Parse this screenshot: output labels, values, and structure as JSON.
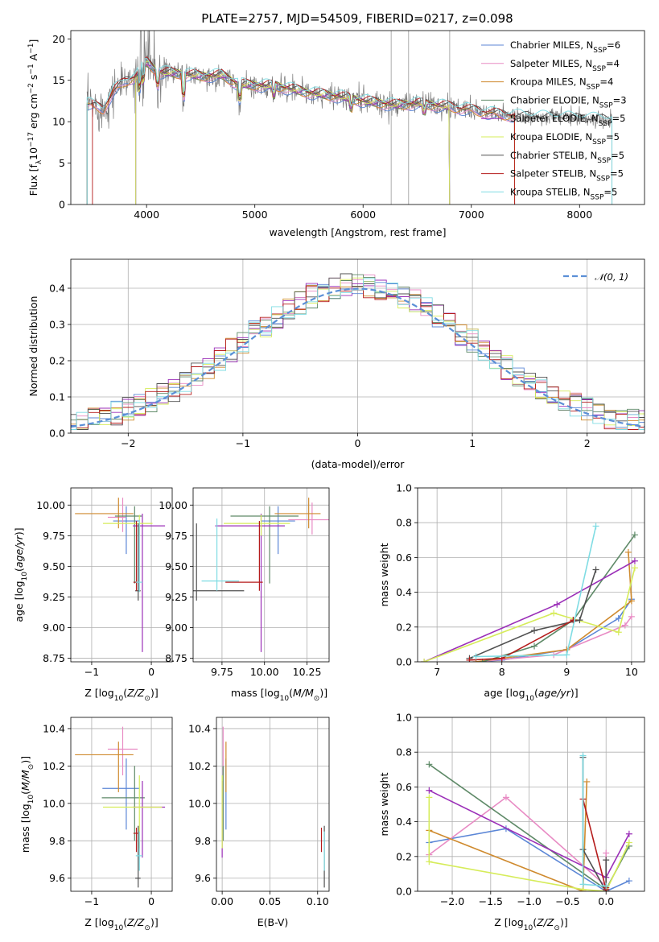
{
  "figure": {
    "title": "PLATE=2757, MJD=54509, FIBERID=0217, z=0.098"
  },
  "colors": {
    "Chabrier MILES": "#5b86d6",
    "Salpeter MILES": "#e88bc4",
    "Kroupa MILES": "#cf8a2e",
    "Chabrier ELODIE": "#5f8a68",
    "Salpeter ELODIE": "#9b2fb8",
    "Kroupa ELODIE": "#d6ec5a",
    "Chabrier STELIB": "#505050",
    "Salpeter STELIB": "#b51c1c",
    "Kroupa STELIB": "#7fdce3",
    "data": "#7a7a7a",
    "gauss": "#5b8fd6",
    "orange": "#e06d1e"
  },
  "chart_data": [
    {
      "id": "spectrum",
      "type": "line",
      "title": "PLATE=2757, MJD=54509, FIBERID=0217, z=0.098",
      "xlabel": "wavelength [Angstrom, rest frame]",
      "ylabel": "Flux [fλ10⁻¹⁷ erg cm⁻² s⁻¹ A⁻¹]",
      "xlim": [
        3300,
        8600
      ],
      "ylim": [
        0,
        21
      ],
      "xticks": [
        4000,
        5000,
        6000,
        7000,
        8000
      ],
      "yticks": [
        0,
        5,
        10,
        15,
        20
      ],
      "legend_position": "top-right",
      "legend": [
        {
          "name": "Chabrier MILES",
          "nssp": "6"
        },
        {
          "name": "Salpeter MILES",
          "nssp": "4"
        },
        {
          "name": "Kroupa MILES",
          "nssp": "4"
        },
        {
          "name": "Chabrier ELODIE",
          "nssp": "3"
        },
        {
          "name": "Salpeter ELODIE",
          "nssp": "5"
        },
        {
          "name": "Kroupa ELODIE",
          "nssp": "5"
        },
        {
          "name": "Chabrier STELIB",
          "nssp": "5"
        },
        {
          "name": "Salpeter STELIB",
          "nssp": "5"
        },
        {
          "name": "Kroupa STELIB",
          "nssp": "5"
        }
      ],
      "continuum": [
        [
          3450,
          12.2
        ],
        [
          3600,
          11.5
        ],
        [
          3700,
          13.8
        ],
        [
          3800,
          14.8
        ],
        [
          3900,
          15.5
        ],
        [
          4000,
          17.2
        ],
        [
          4100,
          16.0
        ],
        [
          4300,
          15.8
        ],
        [
          4500,
          15.5
        ],
        [
          4700,
          15.6
        ],
        [
          4850,
          14.5
        ],
        [
          5000,
          14.4
        ],
        [
          5200,
          14.3
        ],
        [
          5500,
          13.5
        ],
        [
          5800,
          13.0
        ],
        [
          6000,
          12.5
        ],
        [
          6300,
          12.0
        ],
        [
          6500,
          12.2
        ],
        [
          6800,
          11.8
        ],
        [
          7000,
          11.4
        ],
        [
          7300,
          10.8
        ],
        [
          7600,
          10.6
        ],
        [
          7800,
          10.5
        ],
        [
          8000,
          10.4
        ],
        [
          8200,
          10.3
        ],
        [
          8300,
          10.2
        ]
      ],
      "model_ranges": {
        "Chabrier MILES": [
          3450,
          7400
        ],
        "Salpeter MILES": [
          3450,
          7400
        ],
        "Kroupa MILES": [
          3450,
          7400
        ],
        "Chabrier ELODIE": [
          3900,
          6800
        ],
        "Salpeter ELODIE": [
          3900,
          6800
        ],
        "Kroupa ELODIE": [
          3900,
          6800
        ],
        "Chabrier STELIB": [
          3450,
          8300
        ],
        "Salpeter STELIB": [
          3500,
          7400
        ],
        "Kroupa STELIB": [
          3450,
          8300
        ]
      }
    },
    {
      "id": "residuals",
      "type": "line",
      "xlabel": "(data-model)/error",
      "ylabel": "Normed distribution",
      "xlim": [
        -2.5,
        2.5
      ],
      "ylim": [
        0,
        0.48
      ],
      "xticks": [
        -2,
        -1,
        0,
        1,
        2
      ],
      "yticks": [
        0.0,
        0.1,
        0.2,
        0.3,
        0.4
      ],
      "legend_position": "top-right",
      "reference": {
        "name": "𝒩(0, 1)",
        "mean": 0,
        "sigma": 1
      }
    },
    {
      "id": "age_vs_Z",
      "type": "scatter",
      "xlabel": "Z [log10(Z/Z⊙)]",
      "ylabel": "age  [log10(age/yr)]",
      "xlim": [
        -1.35,
        0.35
      ],
      "ylim": [
        8.72,
        10.14
      ],
      "xticks": [
        -1,
        0
      ],
      "yticks": [
        8.75,
        9.0,
        9.25,
        9.5,
        9.75,
        10.0
      ],
      "points": [
        {
          "name": "Chabrier MILES",
          "x": -0.42,
          "xerr": [
            0.22,
            0.22
          ],
          "y": 9.87,
          "yerr": [
            0.27,
            0.12
          ]
        },
        {
          "name": "Salpeter MILES",
          "x": -0.48,
          "xerr": [
            0.25,
            0.05
          ],
          "y": 9.9,
          "yerr": [
            0.12,
            0.16
          ]
        },
        {
          "name": "Kroupa MILES",
          "x": -0.55,
          "xerr": [
            0.73,
            0.25
          ],
          "y": 9.93,
          "yerr": [
            0.12,
            0.13
          ]
        },
        {
          "name": "Chabrier ELODIE",
          "x": -0.28,
          "xerr": [
            0.33,
            0.12
          ],
          "y": 9.91,
          "yerr": [
            0.55,
            0.08
          ]
        },
        {
          "name": "Salpeter ELODIE",
          "x": -0.15,
          "xerr": [
            0.16,
            0.38
          ],
          "y": 9.83,
          "yerr": [
            1.03,
            0.1
          ]
        },
        {
          "name": "Kroupa ELODIE",
          "x": -0.2,
          "xerr": [
            0.61,
            0.22
          ],
          "y": 9.85,
          "yerr": [
            0.1,
            0.07
          ]
        },
        {
          "name": "Chabrier STELIB",
          "x": -0.22,
          "xerr": [
            0.05,
            0.04
          ],
          "y": 9.3,
          "yerr": [
            0.08,
            0.55
          ]
        },
        {
          "name": "Salpeter STELIB",
          "x": -0.25,
          "xerr": [
            0.05,
            0.03
          ],
          "y": 9.37,
          "yerr": [
            0.07,
            0.5
          ]
        },
        {
          "name": "Kroupa STELIB",
          "x": -0.2,
          "xerr": [
            0.06,
            0.05
          ],
          "y": 9.37,
          "yerr": [
            0.08,
            0.51
          ]
        }
      ]
    },
    {
      "id": "age_vs_mass",
      "type": "scatter",
      "xlabel": "mass [log10(M/M⊙)]",
      "xlim": [
        9.58,
        10.38
      ],
      "ylim": [
        8.72,
        10.14
      ],
      "xticks": [
        9.75,
        10.0,
        10.25
      ],
      "xticklabels": [
        "9.75",
        "10.00",
        "10.25"
      ],
      "yticks": [
        8.75,
        9.0,
        9.25,
        9.5,
        9.75,
        10.0
      ],
      "points": [
        {
          "name": "Chabrier MILES",
          "x": 10.08,
          "xerr": [
            0.1,
            0.1
          ],
          "y": 9.87,
          "yerr": [
            0.27,
            0.12
          ]
        },
        {
          "name": "Salpeter MILES",
          "x": 10.28,
          "xerr": [
            0.14,
            0.12
          ],
          "y": 9.88,
          "yerr": [
            0.12,
            0.14
          ]
        },
        {
          "name": "Kroupa MILES",
          "x": 10.26,
          "xerr": [
            0.2,
            0.07
          ],
          "y": 9.93,
          "yerr": [
            0.12,
            0.13
          ]
        },
        {
          "name": "Chabrier ELODIE",
          "x": 10.03,
          "xerr": [
            0.23,
            0.17
          ],
          "y": 9.91,
          "yerr": [
            0.55,
            0.08
          ]
        },
        {
          "name": "Salpeter ELODIE",
          "x": 9.98,
          "xerr": [
            0.27,
            0.14
          ],
          "y": 9.83,
          "yerr": [
            1.03,
            0.1
          ]
        },
        {
          "name": "Kroupa ELODIE",
          "x": 9.98,
          "xerr": [
            0.22,
            0.17
          ],
          "y": 9.85,
          "yerr": [
            0.1,
            0.07
          ]
        },
        {
          "name": "Chabrier STELIB",
          "x": 9.6,
          "xerr": [
            0.02,
            0.28
          ],
          "y": 9.3,
          "yerr": [
            0.08,
            0.55
          ]
        },
        {
          "name": "Salpeter STELIB",
          "x": 9.97,
          "xerr": [
            0.2,
            0.02
          ],
          "y": 9.37,
          "yerr": [
            0.07,
            0.5
          ]
        },
        {
          "name": "Kroupa STELIB",
          "x": 9.72,
          "xerr": [
            0.09,
            0.13
          ],
          "y": 9.38,
          "yerr": [
            0.08,
            0.51
          ]
        }
      ]
    },
    {
      "id": "weight_vs_age",
      "type": "line",
      "xlabel": "age  [log10(age/yr)]",
      "ylabel": "mass weight",
      "xlim": [
        6.7,
        10.2
      ],
      "ylim": [
        0,
        1.0
      ],
      "xticks": [
        7,
        8,
        9,
        10
      ],
      "yticks": [
        0.0,
        0.2,
        0.4,
        0.6,
        0.8,
        1.0
      ],
      "series": [
        {
          "name": "Chabrier MILES",
          "x": [
            7.6,
            8.0,
            9.0,
            9.8,
            10.0
          ],
          "y": [
            0.0,
            0.01,
            0.07,
            0.25,
            0.36
          ]
        },
        {
          "name": "Salpeter MILES",
          "x": [
            7.6,
            8.8,
            9.9,
            10.0
          ],
          "y": [
            0.0,
            0.04,
            0.21,
            0.26
          ]
        },
        {
          "name": "Kroupa MILES",
          "x": [
            7.6,
            9.0,
            10.0,
            9.95
          ],
          "y": [
            0.0,
            0.07,
            0.35,
            0.63
          ]
        },
        {
          "name": "Chabrier ELODIE",
          "x": [
            7.7,
            8.5,
            9.1,
            10.05
          ],
          "y": [
            0.0,
            0.09,
            0.24,
            0.73
          ]
        },
        {
          "name": "Salpeter ELODIE",
          "x": [
            6.8,
            8.85,
            10.05
          ],
          "y": [
            0.0,
            0.33,
            0.58
          ]
        },
        {
          "name": "Kroupa ELODIE",
          "x": [
            6.8,
            8.8,
            9.8,
            10.05
          ],
          "y": [
            0.0,
            0.28,
            0.17,
            0.54
          ]
        },
        {
          "name": "Chabrier STELIB",
          "x": [
            7.5,
            8.5,
            9.2,
            9.45
          ],
          "y": [
            0.02,
            0.18,
            0.24,
            0.53
          ]
        },
        {
          "name": "Salpeter STELIB",
          "x": [
            7.5,
            8.0,
            9.1
          ],
          "y": [
            0.01,
            0.02,
            0.24
          ]
        },
        {
          "name": "Kroupa STELIB",
          "x": [
            7.6,
            9.0,
            9.45
          ],
          "y": [
            0.03,
            0.04,
            0.78
          ]
        }
      ]
    },
    {
      "id": "mass_vs_Z",
      "type": "scatter",
      "xlabel": "Z [log10(Z/Z⊙)]",
      "ylabel": "mass [log10(M/M⊙)]",
      "xlim": [
        -1.35,
        0.35
      ],
      "ylim": [
        9.53,
        10.46
      ],
      "xticks": [
        -1,
        0
      ],
      "yticks": [
        9.6,
        9.8,
        10.0,
        10.2,
        10.4
      ],
      "points": [
        {
          "name": "Chabrier MILES",
          "x": -0.42,
          "xerr": [
            0.4,
            0.22
          ],
          "y": 10.08,
          "yerr": [
            0.22,
            0.16
          ]
        },
        {
          "name": "Salpeter MILES",
          "x": -0.48,
          "xerr": [
            0.25,
            0.25
          ],
          "y": 10.29,
          "yerr": [
            0.14,
            0.12
          ]
        },
        {
          "name": "Kroupa MILES",
          "x": -0.55,
          "xerr": [
            0.73,
            0.25
          ],
          "y": 10.26,
          "yerr": [
            0.2,
            0.07
          ]
        },
        {
          "name": "Chabrier ELODIE",
          "x": -0.28,
          "xerr": [
            0.55,
            0.17
          ],
          "y": 10.03,
          "yerr": [
            0.23,
            0.17
          ]
        },
        {
          "name": "Salpeter ELODIE",
          "x": -0.15,
          "xerr": [
            0.16,
            0.38
          ],
          "y": 9.98,
          "yerr": [
            0.27,
            0.14
          ]
        },
        {
          "name": "Kroupa ELODIE",
          "x": -0.2,
          "xerr": [
            0.61,
            0.38
          ],
          "y": 9.98,
          "yerr": [
            0.22,
            0.17
          ]
        },
        {
          "name": "Chabrier STELIB",
          "x": -0.22,
          "xerr": [
            0.05,
            0.04
          ],
          "y": 9.6,
          "yerr": [
            0.05,
            0.28
          ]
        },
        {
          "name": "Salpeter STELIB",
          "x": -0.25,
          "xerr": [
            0.05,
            0.03
          ],
          "y": 9.84,
          "yerr": [
            0.1,
            0.03
          ]
        },
        {
          "name": "Kroupa STELIB",
          "x": -0.2,
          "xerr": [
            0.06,
            0.05
          ],
          "y": 9.72,
          "yerr": [
            0.08,
            0.13
          ]
        }
      ]
    },
    {
      "id": "mass_vs_ebv",
      "type": "scatter",
      "xlabel": "E(B-V)",
      "xlim": [
        -0.006,
        0.112
      ],
      "ylim": [
        9.53,
        10.46
      ],
      "xticks": [
        0.0,
        0.05,
        0.1
      ],
      "xticklabels": [
        "0.00",
        "0.05",
        "0.10"
      ],
      "yticks": [
        9.6,
        9.8,
        10.0,
        10.2,
        10.4
      ],
      "points": [
        {
          "name": "Chabrier MILES",
          "x": 0.004,
          "y": 10.08,
          "yerr": [
            0.22,
            0.16
          ]
        },
        {
          "name": "Salpeter MILES",
          "x": 0.001,
          "y": 10.29,
          "yerr": [
            0.14,
            0.12
          ]
        },
        {
          "name": "Kroupa MILES",
          "x": 0.004,
          "y": 10.26,
          "yerr": [
            0.2,
            0.07
          ]
        },
        {
          "name": "Chabrier ELODIE",
          "x": 0.001,
          "y": 10.03,
          "yerr": [
            0.23,
            0.17
          ]
        },
        {
          "name": "Salpeter ELODIE",
          "x": 0.0,
          "y": 9.98,
          "yerr": [
            0.27,
            0.14
          ]
        },
        {
          "name": "Kroupa ELODIE",
          "x": 0.0,
          "y": 9.98,
          "yerr": [
            0.22,
            0.17
          ]
        },
        {
          "name": "Chabrier STELIB",
          "x": 0.107,
          "y": 9.6,
          "yerr": [
            0.05,
            0.28
          ]
        },
        {
          "name": "Salpeter STELIB",
          "x": 0.104,
          "y": 9.84,
          "yerr": [
            0.1,
            0.03
          ]
        },
        {
          "name": "Kroupa STELIB",
          "x": 0.107,
          "y": 9.72,
          "yerr": [
            0.08,
            0.13
          ]
        }
      ]
    },
    {
      "id": "weight_vs_Z",
      "type": "line",
      "xlabel": "Z [log10(Z/Z⊙)]",
      "ylabel": "mass weight",
      "xlim": [
        -2.45,
        0.5
      ],
      "ylim": [
        0,
        1.0
      ],
      "xticks": [
        -2.0,
        -1.5,
        -1.0,
        -0.5,
        0.0
      ],
      "xticklabels": [
        "−2.0",
        "−1.5",
        "−1.0",
        "−0.5",
        "0.0"
      ],
      "yticks": [
        0.0,
        0.2,
        0.4,
        0.6,
        0.8,
        1.0
      ],
      "series": [
        {
          "name": "Chabrier MILES",
          "x": [
            -2.3,
            -1.3,
            0.0,
            0.3
          ],
          "y": [
            0.28,
            0.36,
            0.0,
            0.06
          ]
        },
        {
          "name": "Salpeter MILES",
          "x": [
            -2.3,
            -1.3,
            0.0,
            0.0
          ],
          "y": [
            0.21,
            0.54,
            0.03,
            0.22
          ]
        },
        {
          "name": "Kroupa MILES",
          "x": [
            -2.3,
            -0.3,
            -0.25,
            -0.3
          ],
          "y": [
            0.35,
            0.0,
            0.63,
            0.0
          ]
        },
        {
          "name": "Chabrier ELODIE",
          "x": [
            -2.3,
            0.0,
            0.3
          ],
          "y": [
            0.73,
            0.01,
            0.26
          ]
        },
        {
          "name": "Salpeter ELODIE",
          "x": [
            -2.3,
            0.0,
            0.3
          ],
          "y": [
            0.58,
            0.08,
            0.33
          ]
        },
        {
          "name": "Kroupa ELODIE",
          "x": [
            -2.3,
            -2.3,
            -0.3,
            0.0,
            0.3
          ],
          "y": [
            0.54,
            0.17,
            0.01,
            0.0,
            0.28
          ]
        },
        {
          "name": "Chabrier STELIB",
          "x": [
            -0.3,
            -0.3,
            0.0,
            0.0
          ],
          "y": [
            0.77,
            0.24,
            0.0,
            0.18
          ]
        },
        {
          "name": "Salpeter STELIB",
          "x": [
            -0.3,
            0.0,
            0.0
          ],
          "y": [
            0.53,
            0.01,
            0.02
          ]
        },
        {
          "name": "Kroupa STELIB",
          "x": [
            -0.3,
            -0.3,
            0.0
          ],
          "y": [
            0.78,
            0.04,
            0.03
          ]
        }
      ]
    }
  ]
}
